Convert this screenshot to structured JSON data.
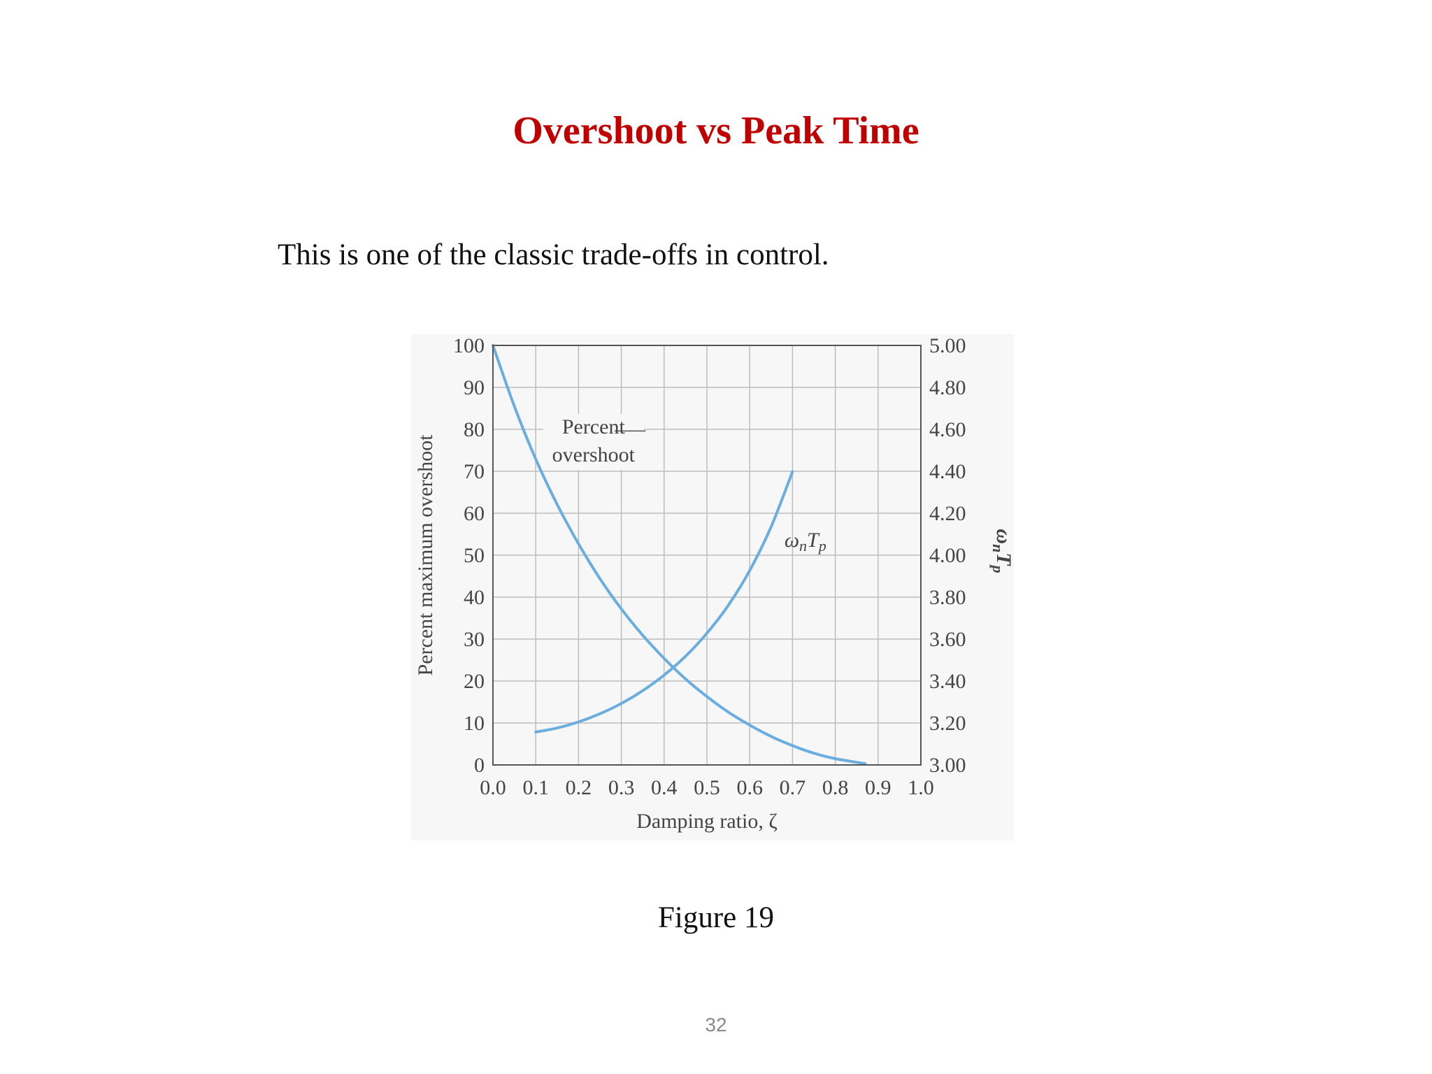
{
  "slide": {
    "title": "Overshoot vs Peak Time",
    "body_text": "This is one of the classic trade-offs in control.",
    "figure_caption": "Figure 19",
    "page_number": "32"
  },
  "colors": {
    "title": "#c00000",
    "curve": "#6aaee0",
    "grid": "#bdbdbd",
    "frame": "#555555"
  },
  "chart_data": {
    "type": "line",
    "title": "",
    "xlabel": "Damping ratio, ζ",
    "ylabel": "Percent maximum overshoot",
    "y2label": "ω",
    "y2label_sub": "n",
    "y2label_p": "T",
    "y2label_psub": "p",
    "xlim": [
      0.0,
      1.0
    ],
    "ylim": [
      0,
      100
    ],
    "y2lim": [
      3.0,
      5.0
    ],
    "x_ticks": [
      "0.0",
      "0.1",
      "0.2",
      "0.3",
      "0.4",
      "0.5",
      "0.6",
      "0.7",
      "0.8",
      "0.9",
      "1.0"
    ],
    "y_ticks": [
      "0",
      "10",
      "20",
      "30",
      "40",
      "50",
      "60",
      "70",
      "80",
      "90",
      "100"
    ],
    "y2_ticks": [
      "3.00",
      "3.20",
      "3.40",
      "3.60",
      "3.80",
      "4.00",
      "4.20",
      "4.40",
      "4.60",
      "4.80",
      "5.00"
    ],
    "grid": true,
    "series": [
      {
        "name": "Percent overshoot",
        "axis": "left",
        "x": [
          0.0,
          0.05,
          0.1,
          0.15,
          0.2,
          0.25,
          0.3,
          0.35,
          0.4,
          0.45,
          0.5,
          0.55,
          0.6,
          0.65,
          0.7,
          0.75,
          0.8,
          0.87
        ],
        "y": [
          100,
          85.5,
          72.9,
          62.1,
          52.7,
          44.4,
          37.2,
          30.9,
          25.4,
          20.5,
          16.3,
          12.6,
          9.5,
          6.8,
          4.6,
          2.8,
          1.5,
          0.3
        ]
      },
      {
        "name": "ω_n T_p",
        "axis": "right",
        "x": [
          0.1,
          0.15,
          0.2,
          0.25,
          0.3,
          0.35,
          0.4,
          0.45,
          0.5,
          0.55,
          0.6,
          0.65,
          0.7
        ],
        "y": [
          3.157,
          3.176,
          3.205,
          3.244,
          3.293,
          3.354,
          3.428,
          3.518,
          3.628,
          3.761,
          3.927,
          4.135,
          4.398
        ]
      }
    ],
    "annotations": [
      {
        "text_line1": "Percent",
        "text_line2": "overshoot",
        "series": "Percent overshoot"
      },
      {
        "text_main": "ω",
        "text_sub": "n",
        "text_main2": "T",
        "text_sub2": "p",
        "series": "ω_n T_p"
      }
    ]
  }
}
